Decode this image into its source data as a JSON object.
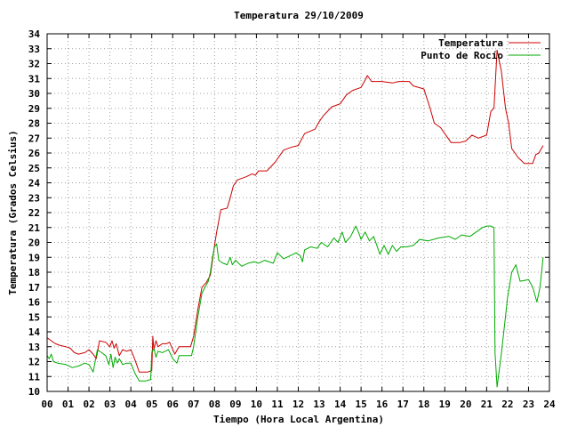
{
  "chart_data": {
    "type": "line",
    "title": "Temperatura 29/10/2009",
    "xlabel": "Tiempo (Hora Local Argentina)",
    "ylabel": "Temperatura (Grados Celsius)",
    "xlim": [
      0,
      24
    ],
    "ylim": [
      10,
      34
    ],
    "x_ticks": [
      "00",
      "01",
      "02",
      "03",
      "04",
      "05",
      "06",
      "07",
      "08",
      "09",
      "10",
      "11",
      "12",
      "13",
      "14",
      "15",
      "16",
      "17",
      "18",
      "19",
      "20",
      "21",
      "22",
      "23",
      "24"
    ],
    "y_ticks": [
      10,
      11,
      12,
      13,
      14,
      15,
      16,
      17,
      18,
      19,
      20,
      21,
      22,
      23,
      24,
      25,
      26,
      27,
      28,
      29,
      30,
      31,
      32,
      33,
      34
    ],
    "grid": true,
    "legend_position": "top-right",
    "series": [
      {
        "name": "Temperatura",
        "color": "#cc0000",
        "points": [
          [
            0.0,
            13.6
          ],
          [
            0.2,
            13.4
          ],
          [
            0.4,
            13.2
          ],
          [
            0.6,
            13.1
          ],
          [
            0.9,
            13.0
          ],
          [
            1.1,
            12.9
          ],
          [
            1.3,
            12.6
          ],
          [
            1.5,
            12.5
          ],
          [
            1.8,
            12.6
          ],
          [
            2.0,
            12.8
          ],
          [
            2.2,
            12.5
          ],
          [
            2.35,
            12.2
          ],
          [
            2.5,
            13.4
          ],
          [
            2.8,
            13.3
          ],
          [
            3.0,
            13.0
          ],
          [
            3.1,
            13.4
          ],
          [
            3.2,
            12.9
          ],
          [
            3.3,
            13.2
          ],
          [
            3.45,
            12.4
          ],
          [
            3.6,
            12.8
          ],
          [
            3.8,
            12.7
          ],
          [
            4.0,
            12.8
          ],
          [
            4.2,
            12.1
          ],
          [
            4.4,
            11.3
          ],
          [
            4.6,
            11.3
          ],
          [
            4.8,
            11.3
          ],
          [
            5.0,
            11.4
          ],
          [
            5.05,
            13.7
          ],
          [
            5.1,
            12.8
          ],
          [
            5.2,
            13.4
          ],
          [
            5.3,
            13.0
          ],
          [
            5.5,
            13.2
          ],
          [
            5.7,
            13.2
          ],
          [
            5.85,
            13.3
          ],
          [
            6.1,
            12.5
          ],
          [
            6.3,
            13.0
          ],
          [
            6.6,
            13.0
          ],
          [
            6.85,
            13.0
          ],
          [
            7.0,
            13.7
          ],
          [
            7.2,
            15.5
          ],
          [
            7.4,
            17.0
          ],
          [
            7.6,
            17.3
          ],
          [
            7.8,
            17.8
          ],
          [
            7.9,
            18.8
          ],
          [
            8.0,
            19.8
          ],
          [
            8.1,
            20.7
          ],
          [
            8.3,
            22.2
          ],
          [
            8.6,
            22.3
          ],
          [
            8.75,
            23.0
          ],
          [
            8.9,
            23.8
          ],
          [
            9.1,
            24.2
          ],
          [
            9.5,
            24.4
          ],
          [
            9.8,
            24.6
          ],
          [
            9.95,
            24.5
          ],
          [
            10.1,
            24.8
          ],
          [
            10.5,
            24.8
          ],
          [
            10.9,
            25.4
          ],
          [
            11.3,
            26.2
          ],
          [
            11.7,
            26.4
          ],
          [
            12.0,
            26.5
          ],
          [
            12.3,
            27.3
          ],
          [
            12.8,
            27.6
          ],
          [
            13.0,
            28.1
          ],
          [
            13.2,
            28.5
          ],
          [
            13.6,
            29.1
          ],
          [
            14.0,
            29.3
          ],
          [
            14.3,
            29.9
          ],
          [
            14.6,
            30.2
          ],
          [
            15.0,
            30.4
          ],
          [
            15.2,
            30.9
          ],
          [
            15.3,
            31.2
          ],
          [
            15.5,
            30.8
          ],
          [
            16.0,
            30.8
          ],
          [
            16.5,
            30.7
          ],
          [
            16.8,
            30.8
          ],
          [
            17.3,
            30.8
          ],
          [
            17.5,
            30.5
          ],
          [
            18.0,
            30.3
          ],
          [
            18.3,
            29.0
          ],
          [
            18.5,
            28.0
          ],
          [
            18.8,
            27.7
          ],
          [
            19.0,
            27.3
          ],
          [
            19.3,
            26.7
          ],
          [
            19.7,
            26.7
          ],
          [
            20.0,
            26.8
          ],
          [
            20.3,
            27.2
          ],
          [
            20.6,
            27.0
          ],
          [
            21.0,
            27.2
          ],
          [
            21.2,
            28.8
          ],
          [
            21.35,
            29.0
          ],
          [
            21.5,
            32.9
          ],
          [
            21.7,
            31.5
          ],
          [
            21.9,
            29.0
          ],
          [
            22.05,
            28.0
          ],
          [
            22.2,
            26.3
          ],
          [
            22.5,
            25.7
          ],
          [
            22.8,
            25.3
          ],
          [
            23.2,
            25.3
          ],
          [
            23.35,
            25.9
          ],
          [
            23.5,
            26.0
          ],
          [
            23.7,
            26.5
          ]
        ]
      },
      {
        "name": "Punto de Rocío",
        "color": "#00aa00",
        "points": [
          [
            0.0,
            12.4
          ],
          [
            0.1,
            12.2
          ],
          [
            0.2,
            12.5
          ],
          [
            0.3,
            12.0
          ],
          [
            0.5,
            11.9
          ],
          [
            0.9,
            11.8
          ],
          [
            1.2,
            11.6
          ],
          [
            1.5,
            11.7
          ],
          [
            1.8,
            11.9
          ],
          [
            2.0,
            11.8
          ],
          [
            2.2,
            11.3
          ],
          [
            2.4,
            12.8
          ],
          [
            2.6,
            12.6
          ],
          [
            2.8,
            12.4
          ],
          [
            2.95,
            11.8
          ],
          [
            3.05,
            12.5
          ],
          [
            3.15,
            11.6
          ],
          [
            3.25,
            12.3
          ],
          [
            3.35,
            11.9
          ],
          [
            3.45,
            12.2
          ],
          [
            3.6,
            11.8
          ],
          [
            3.8,
            11.9
          ],
          [
            4.0,
            11.9
          ],
          [
            4.2,
            11.2
          ],
          [
            4.4,
            10.7
          ],
          [
            4.7,
            10.7
          ],
          [
            4.95,
            10.8
          ],
          [
            5.0,
            12.6
          ],
          [
            5.1,
            12.9
          ],
          [
            5.2,
            12.3
          ],
          [
            5.3,
            12.7
          ],
          [
            5.5,
            12.6
          ],
          [
            5.8,
            12.8
          ],
          [
            6.0,
            12.2
          ],
          [
            6.2,
            11.9
          ],
          [
            6.3,
            12.4
          ],
          [
            6.6,
            12.4
          ],
          [
            6.9,
            12.4
          ],
          [
            7.0,
            13.0
          ],
          [
            7.2,
            15.0
          ],
          [
            7.4,
            16.6
          ],
          [
            7.7,
            17.4
          ],
          [
            7.8,
            18.0
          ],
          [
            7.9,
            19.0
          ],
          [
            8.0,
            19.7
          ],
          [
            8.1,
            19.9
          ],
          [
            8.2,
            18.8
          ],
          [
            8.4,
            18.6
          ],
          [
            8.6,
            18.5
          ],
          [
            8.75,
            19.0
          ],
          [
            8.85,
            18.5
          ],
          [
            9.0,
            18.8
          ],
          [
            9.3,
            18.4
          ],
          [
            9.6,
            18.6
          ],
          [
            9.9,
            18.7
          ],
          [
            10.1,
            18.6
          ],
          [
            10.4,
            18.8
          ],
          [
            10.8,
            18.6
          ],
          [
            11.0,
            19.3
          ],
          [
            11.3,
            18.9
          ],
          [
            11.6,
            19.1
          ],
          [
            11.9,
            19.3
          ],
          [
            12.1,
            19.1
          ],
          [
            12.2,
            18.7
          ],
          [
            12.3,
            19.5
          ],
          [
            12.6,
            19.7
          ],
          [
            12.9,
            19.6
          ],
          [
            13.1,
            20.0
          ],
          [
            13.4,
            19.7
          ],
          [
            13.7,
            20.3
          ],
          [
            13.9,
            20.0
          ],
          [
            14.1,
            20.7
          ],
          [
            14.25,
            20.0
          ],
          [
            14.5,
            20.4
          ],
          [
            14.75,
            21.1
          ],
          [
            14.9,
            20.6
          ],
          [
            15.0,
            20.2
          ],
          [
            15.2,
            20.7
          ],
          [
            15.4,
            20.1
          ],
          [
            15.6,
            20.4
          ],
          [
            15.8,
            19.6
          ],
          [
            15.9,
            19.2
          ],
          [
            16.1,
            19.8
          ],
          [
            16.3,
            19.2
          ],
          [
            16.5,
            19.8
          ],
          [
            16.7,
            19.4
          ],
          [
            16.9,
            19.7
          ],
          [
            17.2,
            19.7
          ],
          [
            17.5,
            19.8
          ],
          [
            17.8,
            20.2
          ],
          [
            18.2,
            20.1
          ],
          [
            18.7,
            20.3
          ],
          [
            19.2,
            20.4
          ],
          [
            19.5,
            20.2
          ],
          [
            19.8,
            20.5
          ],
          [
            20.2,
            20.4
          ],
          [
            20.5,
            20.7
          ],
          [
            20.8,
            21.0
          ],
          [
            21.0,
            21.1
          ],
          [
            21.2,
            21.1
          ],
          [
            21.35,
            21.0
          ],
          [
            21.4,
            12.6
          ],
          [
            21.5,
            10.3
          ],
          [
            21.7,
            12.5
          ],
          [
            22.0,
            16.3
          ],
          [
            22.2,
            18.0
          ],
          [
            22.4,
            18.5
          ],
          [
            22.6,
            17.4
          ],
          [
            23.0,
            17.5
          ],
          [
            23.2,
            17.0
          ],
          [
            23.4,
            16.0
          ],
          [
            23.55,
            17.0
          ],
          [
            23.7,
            19.0
          ]
        ]
      }
    ]
  }
}
